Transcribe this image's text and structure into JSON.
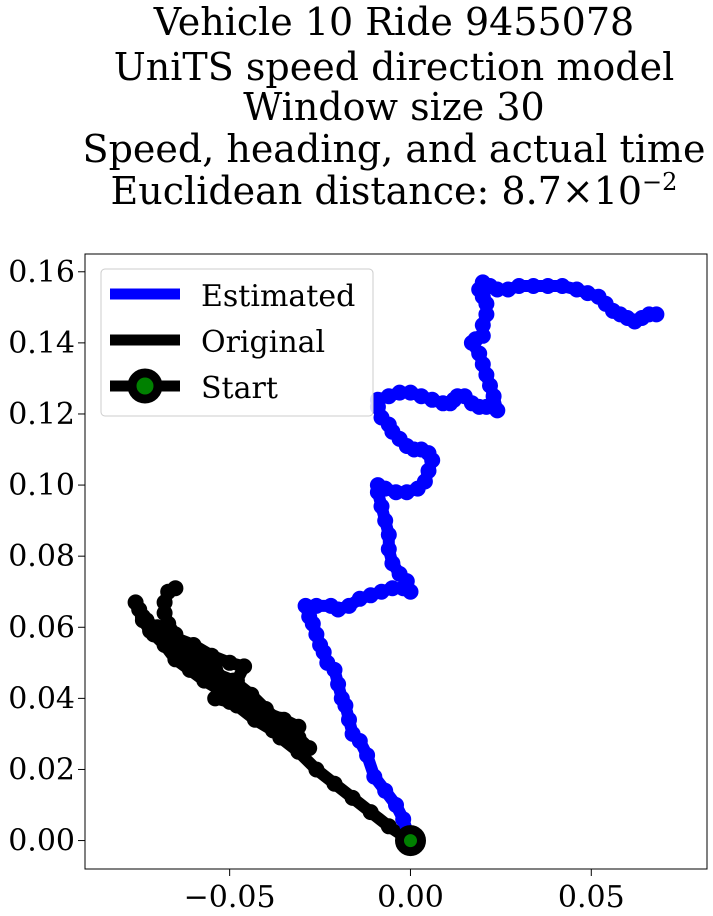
{
  "chart_data": {
    "type": "line",
    "title_lines": [
      "Vehicle 10 Ride 9455078",
      "UniTS speed direction model",
      "Window size 30",
      "Speed, heading, and actual time"
    ],
    "distance_label": "Euclidean distance: ",
    "distance_mantissa": "8.7",
    "distance_times": "×",
    "distance_base": "10",
    "distance_exponent": "−2",
    "xlabel": "",
    "ylabel": "",
    "xlim": [
      -0.09,
      0.082
    ],
    "ylim": [
      -0.008,
      0.165
    ],
    "x_ticks": [
      -0.05,
      0.0,
      0.05
    ],
    "x_tick_labels": [
      "−0.05",
      "0.00",
      "0.05"
    ],
    "y_ticks": [
      0.0,
      0.02,
      0.04,
      0.06,
      0.08,
      0.1,
      0.12,
      0.14,
      0.16
    ],
    "y_tick_labels": [
      "0.00",
      "0.02",
      "0.04",
      "0.06",
      "0.08",
      "0.10",
      "0.12",
      "0.14",
      "0.16"
    ],
    "grid": false,
    "legend_position": "upper-left",
    "series": [
      {
        "name": "Estimated",
        "color": "#0000ff",
        "points": [
          [
            0.0,
            0.0
          ],
          [
            -0.002,
            0.006
          ],
          [
            -0.004,
            0.01
          ],
          [
            -0.007,
            0.014
          ],
          [
            -0.01,
            0.018
          ],
          [
            -0.012,
            0.024
          ],
          [
            -0.014,
            0.028
          ],
          [
            -0.016,
            0.03
          ],
          [
            -0.017,
            0.034
          ],
          [
            -0.018,
            0.038
          ],
          [
            -0.019,
            0.04
          ],
          [
            -0.02,
            0.044
          ],
          [
            -0.021,
            0.048
          ],
          [
            -0.023,
            0.05
          ],
          [
            -0.024,
            0.053
          ],
          [
            -0.025,
            0.055
          ],
          [
            -0.026,
            0.058
          ],
          [
            -0.027,
            0.061
          ],
          [
            -0.028,
            0.063
          ],
          [
            -0.029,
            0.066
          ],
          [
            -0.026,
            0.066
          ],
          [
            -0.022,
            0.066
          ],
          [
            -0.02,
            0.065
          ],
          [
            -0.017,
            0.066
          ],
          [
            -0.014,
            0.068
          ],
          [
            -0.011,
            0.069
          ],
          [
            -0.008,
            0.07
          ],
          [
            -0.005,
            0.071
          ],
          [
            -0.002,
            0.071
          ],
          [
            0.0,
            0.07
          ],
          [
            -0.001,
            0.073
          ],
          [
            -0.003,
            0.075
          ],
          [
            -0.005,
            0.078
          ],
          [
            -0.006,
            0.082
          ],
          [
            -0.006,
            0.086
          ],
          [
            -0.007,
            0.09
          ],
          [
            -0.008,
            0.094
          ],
          [
            -0.009,
            0.098
          ],
          [
            -0.009,
            0.1
          ],
          [
            -0.007,
            0.099
          ],
          [
            -0.004,
            0.098
          ],
          [
            -0.001,
            0.098
          ],
          [
            0.002,
            0.099
          ],
          [
            0.004,
            0.101
          ],
          [
            0.005,
            0.104
          ],
          [
            0.006,
            0.107
          ],
          [
            0.005,
            0.109
          ],
          [
            0.003,
            0.11
          ],
          [
            0.001,
            0.11
          ],
          [
            -0.001,
            0.111
          ],
          [
            -0.003,
            0.113
          ],
          [
            -0.005,
            0.115
          ],
          [
            -0.006,
            0.117
          ],
          [
            -0.008,
            0.119
          ],
          [
            -0.009,
            0.122
          ],
          [
            -0.009,
            0.124
          ],
          [
            -0.006,
            0.125
          ],
          [
            -0.003,
            0.126
          ],
          [
            0.0,
            0.126
          ],
          [
            0.003,
            0.125
          ],
          [
            0.006,
            0.124
          ],
          [
            0.009,
            0.123
          ],
          [
            0.011,
            0.123
          ],
          [
            0.012,
            0.124
          ],
          [
            0.013,
            0.125
          ],
          [
            0.015,
            0.125
          ],
          [
            0.017,
            0.123
          ],
          [
            0.019,
            0.122
          ],
          [
            0.021,
            0.122
          ],
          [
            0.023,
            0.122
          ],
          [
            0.024,
            0.121
          ],
          [
            0.023,
            0.125
          ],
          [
            0.022,
            0.128
          ],
          [
            0.021,
            0.131
          ],
          [
            0.02,
            0.134
          ],
          [
            0.019,
            0.137
          ],
          [
            0.017,
            0.14
          ],
          [
            0.018,
            0.141
          ],
          [
            0.02,
            0.142
          ],
          [
            0.02,
            0.145
          ],
          [
            0.021,
            0.148
          ],
          [
            0.021,
            0.151
          ],
          [
            0.02,
            0.153
          ],
          [
            0.019,
            0.155
          ],
          [
            0.02,
            0.157
          ],
          [
            0.022,
            0.156
          ],
          [
            0.024,
            0.155
          ],
          [
            0.027,
            0.155
          ],
          [
            0.03,
            0.156
          ],
          [
            0.034,
            0.156
          ],
          [
            0.038,
            0.156
          ],
          [
            0.042,
            0.156
          ],
          [
            0.046,
            0.155
          ],
          [
            0.049,
            0.154
          ],
          [
            0.052,
            0.153
          ],
          [
            0.054,
            0.151
          ],
          [
            0.056,
            0.149
          ],
          [
            0.058,
            0.148
          ],
          [
            0.06,
            0.147
          ],
          [
            0.062,
            0.146
          ],
          [
            0.064,
            0.147
          ],
          [
            0.066,
            0.148
          ],
          [
            0.068,
            0.148
          ]
        ]
      },
      {
        "name": "Original",
        "color": "#000000",
        "points": [
          [
            0.0,
            0.0
          ],
          [
            -0.006,
            0.004
          ],
          [
            -0.011,
            0.008
          ],
          [
            -0.016,
            0.012
          ],
          [
            -0.021,
            0.016
          ],
          [
            -0.026,
            0.02
          ],
          [
            -0.031,
            0.025
          ],
          [
            -0.036,
            0.029
          ],
          [
            -0.041,
            0.034
          ],
          [
            -0.046,
            0.038
          ],
          [
            -0.05,
            0.042
          ],
          [
            -0.054,
            0.046
          ],
          [
            -0.058,
            0.049
          ],
          [
            -0.062,
            0.052
          ],
          [
            -0.066,
            0.055
          ],
          [
            -0.07,
            0.058
          ],
          [
            -0.073,
            0.062
          ],
          [
            -0.075,
            0.065
          ],
          [
            -0.076,
            0.067
          ],
          [
            -0.074,
            0.063
          ],
          [
            -0.071,
            0.058
          ],
          [
            -0.066,
            0.054
          ],
          [
            -0.06,
            0.05
          ],
          [
            -0.054,
            0.047
          ],
          [
            -0.049,
            0.045
          ],
          [
            -0.044,
            0.041
          ],
          [
            -0.04,
            0.037
          ],
          [
            -0.036,
            0.033
          ],
          [
            -0.031,
            0.029
          ],
          [
            -0.028,
            0.026
          ],
          [
            -0.033,
            0.028
          ],
          [
            -0.038,
            0.031
          ],
          [
            -0.043,
            0.034
          ],
          [
            -0.048,
            0.038
          ],
          [
            -0.052,
            0.042
          ],
          [
            -0.057,
            0.045
          ],
          [
            -0.061,
            0.048
          ],
          [
            -0.065,
            0.051
          ],
          [
            -0.068,
            0.055
          ],
          [
            -0.072,
            0.059
          ],
          [
            -0.074,
            0.062
          ],
          [
            -0.07,
            0.06
          ],
          [
            -0.065,
            0.057
          ],
          [
            -0.06,
            0.055
          ],
          [
            -0.055,
            0.052
          ],
          [
            -0.05,
            0.05
          ],
          [
            -0.046,
            0.049
          ],
          [
            -0.048,
            0.045
          ],
          [
            -0.051,
            0.042
          ],
          [
            -0.054,
            0.04
          ],
          [
            -0.05,
            0.039
          ],
          [
            -0.045,
            0.038
          ],
          [
            -0.04,
            0.036
          ],
          [
            -0.035,
            0.034
          ],
          [
            -0.031,
            0.032
          ],
          [
            -0.036,
            0.034
          ],
          [
            -0.041,
            0.037
          ],
          [
            -0.046,
            0.04
          ],
          [
            -0.05,
            0.044
          ],
          [
            -0.054,
            0.048
          ],
          [
            -0.058,
            0.051
          ],
          [
            -0.062,
            0.054
          ],
          [
            -0.065,
            0.058
          ],
          [
            -0.067,
            0.061
          ],
          [
            -0.068,
            0.064
          ],
          [
            -0.068,
            0.067
          ],
          [
            -0.067,
            0.07
          ],
          [
            -0.065,
            0.071
          ]
        ]
      }
    ],
    "start": {
      "name": "Start",
      "x": 0.0,
      "y": 0.0,
      "edge_color": "#000000",
      "face_color": "#008000"
    }
  }
}
